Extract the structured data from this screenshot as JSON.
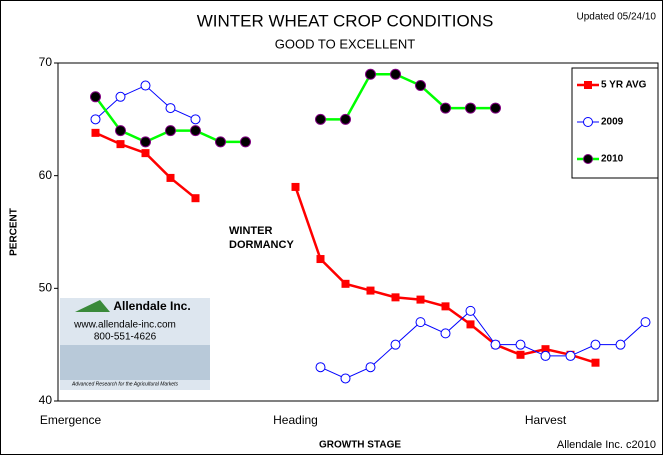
{
  "chart_data": {
    "type": "line",
    "title": "WINTER WHEAT CROP CONDITIONS",
    "subtitle": "GOOD TO EXCELLENT",
    "updated": "Updated 05/24/10",
    "ylabel": "PERCENT",
    "xlabel": "GROWTH STAGE",
    "annotation": [
      "WINTER",
      "DORMANCY"
    ],
    "credit": "Allendale Inc. c2010",
    "logo": {
      "name": "Allendale Inc.",
      "url": "www.allendale-inc.com",
      "phone": "800-551-4626",
      "tagline": "Advanced Research for the Agricultural Markets"
    },
    "categories": [
      "Emergence",
      null,
      null,
      null,
      null,
      null,
      null,
      null,
      null,
      "Heading",
      null,
      null,
      null,
      null,
      null,
      null,
      null,
      null,
      null,
      "Harvest",
      null,
      null,
      null,
      null
    ],
    "series": [
      {
        "name": "5 YR AVG",
        "color": "#ff0000",
        "marker": "square",
        "values": [
          null,
          63.8,
          62.8,
          62,
          59.8,
          58,
          null,
          null,
          null,
          59,
          52.6,
          50.4,
          49.8,
          49.2,
          49,
          48.4,
          46.8,
          45,
          44.1,
          44.6,
          44.1,
          43.4,
          null,
          null
        ]
      },
      {
        "name": "2009",
        "color": "#0000ff",
        "marker": "circle-open",
        "values": [
          null,
          65,
          67,
          68,
          66,
          65,
          null,
          null,
          null,
          null,
          43,
          42,
          43,
          45,
          47,
          46,
          48,
          45,
          45,
          44,
          44,
          45,
          45,
          47
        ]
      },
      {
        "name": "2010",
        "color": "#00ff00",
        "marker": "circle",
        "values": [
          null,
          67,
          64,
          63,
          64,
          64,
          63,
          63,
          null,
          null,
          65,
          65,
          69,
          69,
          68,
          66,
          66,
          66,
          null,
          null,
          null,
          null,
          null,
          null
        ]
      }
    ],
    "ylim": [
      40,
      70
    ],
    "yticks": [
      40,
      50,
      60,
      70
    ],
    "grid": false,
    "legend": "top-right"
  }
}
